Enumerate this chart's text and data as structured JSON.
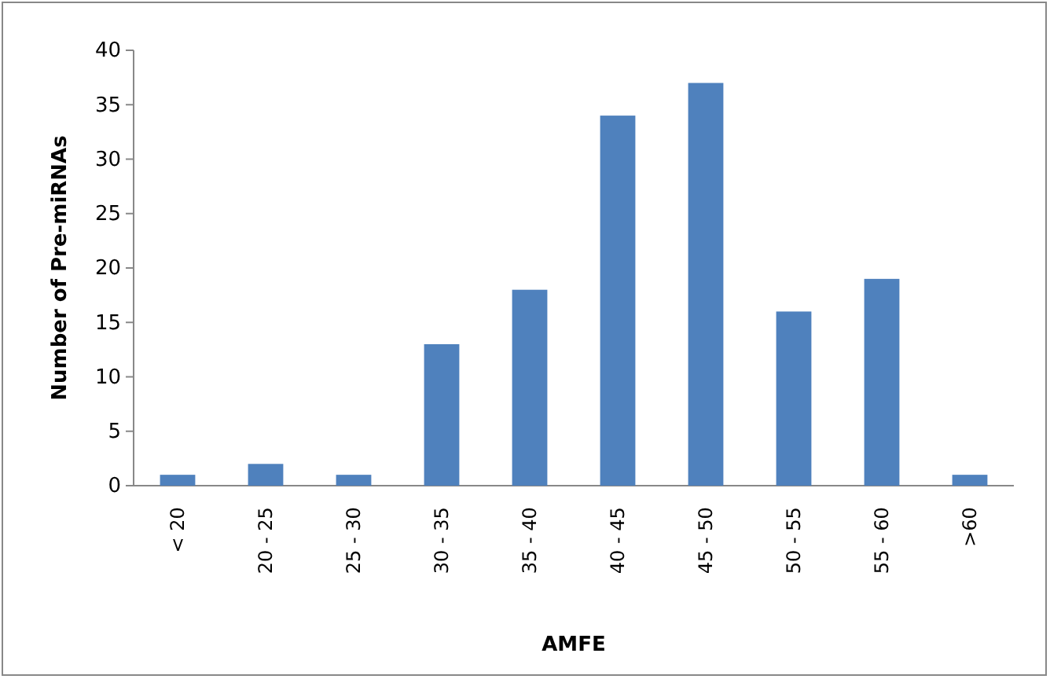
{
  "chart_data": {
    "type": "bar",
    "xlabel": "AMFE",
    "ylabel": "Number of Pre-miRNAs",
    "categories": [
      "< 20",
      "20 - 25",
      "25 - 30",
      "30 - 35",
      "35 - 40",
      "40 - 45",
      "45 - 50",
      "50 - 55",
      "55 - 60",
      ">60"
    ],
    "values": [
      1,
      2,
      1,
      13,
      18,
      34,
      37,
      16,
      19,
      1
    ],
    "color": "#4f81bd",
    "ylim": [
      0,
      40
    ],
    "yticks": [
      0,
      5,
      10,
      15,
      20,
      25,
      30,
      35,
      40
    ],
    "grid": false
  }
}
